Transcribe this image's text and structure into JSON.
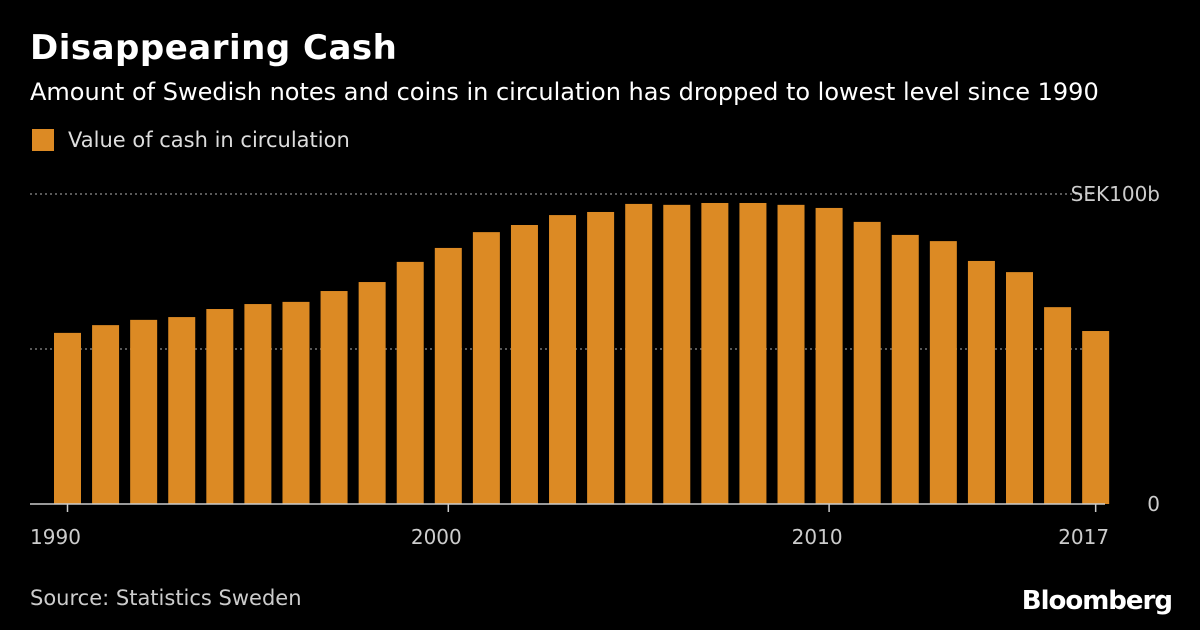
{
  "title": "Disappearing Cash",
  "subtitle": "Amount of Swedish notes and coins in circulation has dropped to lowest level since 1990",
  "source": "Source: Statistics Sweden",
  "logo": "Bloomberg",
  "chart_data": {
    "type": "bar",
    "title": "Disappearing Cash",
    "legend": [
      {
        "name": "Value of cash in circulation",
        "color": "#dc8a24"
      }
    ],
    "categories": [
      1990,
      1991,
      1992,
      1993,
      1994,
      1995,
      1996,
      1997,
      1998,
      1999,
      2000,
      2001,
      2002,
      2003,
      2004,
      2005,
      2006,
      2007,
      2008,
      2009,
      2010,
      2011,
      2012,
      2013,
      2014,
      2015,
      2016,
      2017
    ],
    "series": [
      {
        "name": "Value of cash in circulation",
        "values": [
          55.2,
          57.7,
          59.4,
          60.3,
          62.9,
          64.5,
          65.2,
          68.7,
          71.6,
          78.1,
          82.6,
          87.7,
          90,
          93.2,
          94.2,
          96.8,
          96.5,
          97.1,
          97.1,
          96.5,
          95.5,
          91,
          86.8,
          84.8,
          78.4,
          74.8,
          63.5,
          55.8
        ]
      }
    ],
    "ylim": [
      0,
      100
    ],
    "y_ticks": [
      {
        "value": 0,
        "label": "0"
      },
      {
        "value": 50,
        "label": ""
      },
      {
        "value": 100,
        "label": "SEK100b"
      }
    ],
    "x_ticks": [
      {
        "value": 1990,
        "label": "1990"
      },
      {
        "value": 2000,
        "label": "2000"
      },
      {
        "value": 2010,
        "label": "2010"
      },
      {
        "value": 2017,
        "label": "2017"
      }
    ],
    "grid": true,
    "legend_position": "top-left"
  }
}
